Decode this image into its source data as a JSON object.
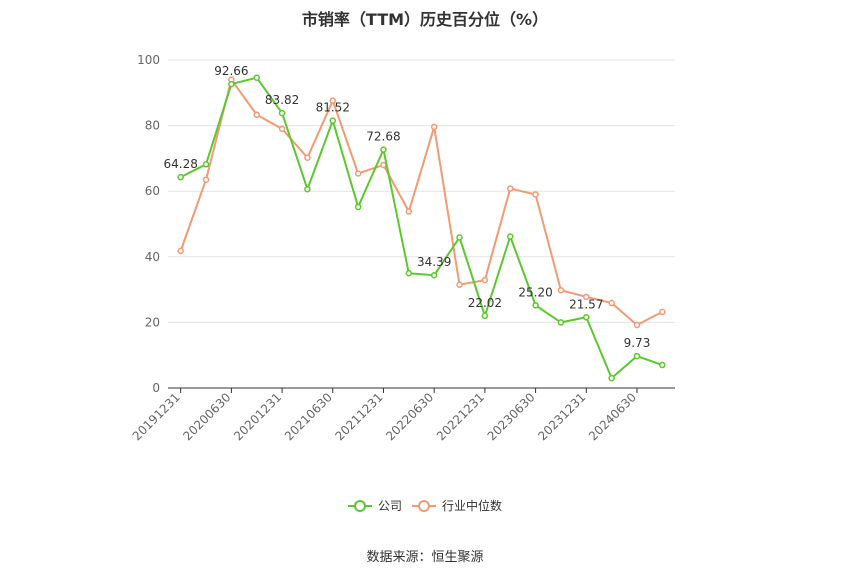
{
  "chart_data": {
    "type": "line",
    "title": "市销率（TTM）历史百分位（%）",
    "x": [
      "20191231",
      "20200331",
      "20200630",
      "20200930",
      "20201231",
      "20210331",
      "20210630",
      "20210930",
      "20211231",
      "20220331",
      "20220630",
      "20220930",
      "20221231",
      "20230331",
      "20230630",
      "20230930",
      "20231231",
      "20240331",
      "20240630",
      "20240930"
    ],
    "x_tick_labels": [
      "20191231",
      "20200630",
      "20201231",
      "20210630",
      "20211231",
      "20220630",
      "20221231",
      "20230630",
      "20231231",
      "20240630"
    ],
    "ylim": [
      0,
      100
    ],
    "y_ticks": [
      0,
      20,
      40,
      60,
      80,
      100
    ],
    "grid": true,
    "legend_position": "bottom",
    "series": [
      {
        "name": "公司",
        "color": "#5cc82e",
        "values": [
          64.28,
          68.2,
          92.66,
          94.6,
          83.82,
          60.6,
          81.52,
          55.2,
          72.68,
          35.0,
          34.39,
          45.9,
          22.02,
          46.2,
          25.2,
          20.0,
          21.57,
          3.0,
          9.73,
          7.0
        ]
      },
      {
        "name": "行业中位数",
        "color": "#f29a73",
        "values": [
          41.8,
          63.5,
          94.0,
          83.3,
          79.0,
          70.2,
          87.6,
          65.4,
          68.0,
          53.8,
          79.6,
          31.5,
          32.9,
          60.8,
          59.0,
          29.8,
          27.8,
          25.9,
          19.2,
          23.2
        ]
      }
    ],
    "data_labels": [
      {
        "series": 0,
        "index": 0,
        "text": "64.28"
      },
      {
        "series": 0,
        "index": 2,
        "text": "92.66"
      },
      {
        "series": 0,
        "index": 4,
        "text": "83.82"
      },
      {
        "series": 0,
        "index": 6,
        "text": "81.52"
      },
      {
        "series": 0,
        "index": 8,
        "text": "72.68"
      },
      {
        "series": 0,
        "index": 10,
        "text": "34.39"
      },
      {
        "series": 0,
        "index": 12,
        "text": "22.02"
      },
      {
        "series": 0,
        "index": 14,
        "text": "25.20"
      },
      {
        "series": 0,
        "index": 16,
        "text": "21.57"
      },
      {
        "series": 0,
        "index": 18,
        "text": "9.73"
      }
    ]
  },
  "source_text": "数据来源：恒生聚源"
}
